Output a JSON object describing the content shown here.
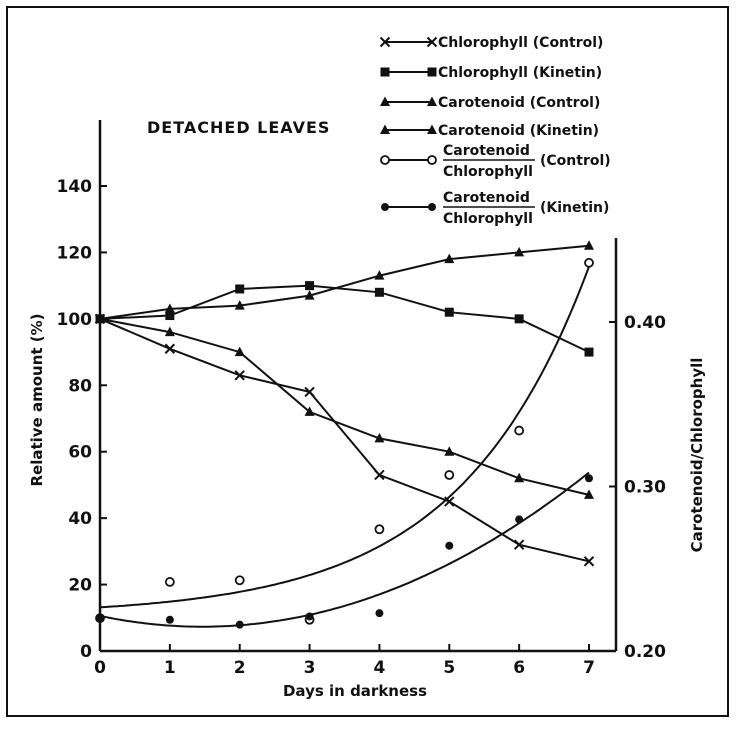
{
  "chart_data": {
    "type": "line",
    "title": "DETACHED LEAVES",
    "xlabel": "Days in darkness",
    "ylabel": "Relative amount (%)",
    "y2label": "Carotenoid/Chlorophyll",
    "xlim": [
      0,
      7
    ],
    "ylim": [
      0,
      140
    ],
    "y2lim": [
      0.2,
      0.4
    ],
    "x_ticks": [
      "0",
      "1",
      "2",
      "3",
      "4",
      "5",
      "6",
      "7"
    ],
    "y_ticks": [
      "0",
      "20",
      "40",
      "60",
      "80",
      "100",
      "120",
      "140"
    ],
    "y2_ticks": [
      "0.20",
      "0.30",
      "0.40"
    ],
    "grid": false,
    "legend_position": "top-right",
    "x": [
      0,
      1,
      2,
      3,
      4,
      5,
      6,
      7
    ],
    "series": [
      {
        "name": "Chlorophyll (Control)",
        "axis": "left",
        "marker": "x",
        "color": "#111111",
        "values": [
          100,
          91,
          83,
          78,
          53,
          45,
          32,
          27
        ]
      },
      {
        "name": "Chlorophyll (Kinetin)",
        "axis": "left",
        "marker": "square",
        "color": "#111111",
        "values": [
          100,
          101,
          109,
          110,
          108,
          102,
          100,
          90
        ]
      },
      {
        "name": "Carotenoid (Control)",
        "axis": "left",
        "marker": "triangle",
        "color": "#111111",
        "values": [
          100,
          96,
          90,
          72,
          64,
          60,
          52,
          47
        ]
      },
      {
        "name": "Carotenoid (Kinetin)",
        "axis": "left",
        "marker": "triangle",
        "color": "#111111",
        "values": [
          100,
          103,
          104,
          107,
          113,
          118,
          120,
          122
        ]
      },
      {
        "name_top": "Carotenoid",
        "name_bottom": "Chlorophyll",
        "name_suffix": "(Control)",
        "axis": "right",
        "marker": "open-circle",
        "color": "#111111",
        "smooth": true,
        "values": [
          0.22,
          0.242,
          0.243,
          0.219,
          0.274,
          0.307,
          0.334,
          0.436
        ]
      },
      {
        "name_top": "Carotenoid",
        "name_bottom": "Chlorophyll",
        "name_suffix": "(Kinetin)",
        "axis": "right",
        "marker": "filled-circle",
        "color": "#111111",
        "smooth": true,
        "values": [
          0.22,
          0.219,
          0.216,
          0.221,
          0.223,
          0.264,
          0.28,
          0.305
        ]
      }
    ]
  }
}
